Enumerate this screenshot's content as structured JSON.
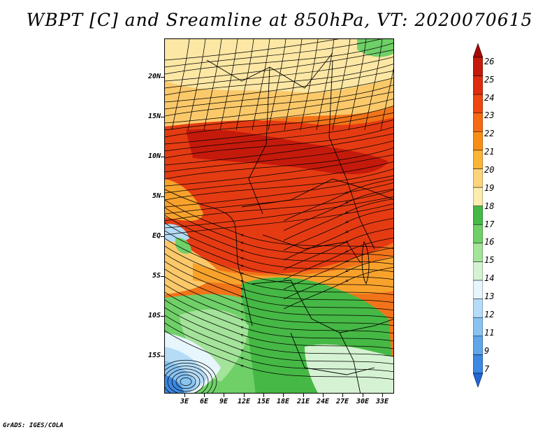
{
  "title": "WBPT [C] and Sreamline at 850hPa, VT: 2020070615",
  "latitude_labels": [
    "20N",
    "15N",
    "10N",
    "5N",
    "EQ",
    "5S",
    "10S",
    "15S"
  ],
  "longitude_labels": [
    "3E",
    "6E",
    "9E",
    "12E",
    "15E",
    "18E",
    "21E",
    "24E",
    "27E",
    "30E",
    "33E"
  ],
  "colorbar": {
    "labels": [
      "26",
      "25",
      "24",
      "23",
      "22",
      "21",
      "20",
      "19",
      "18",
      "17",
      "16",
      "15",
      "14",
      "13",
      "12",
      "11",
      "9",
      "7"
    ],
    "colors": [
      "#a50a0a",
      "#c41a0c",
      "#dd2c0f",
      "#ee4711",
      "#f56a12",
      "#f98e16",
      "#fbb338",
      "#fcd57a",
      "#fcecad",
      "#46b845",
      "#6fd068",
      "#a4e39a",
      "#d5f3d2",
      "#e7f5fd",
      "#b4dcf7",
      "#88c3f1",
      "#5fa6ea",
      "#3c88e2",
      "#1f66d6"
    ]
  },
  "map_colors": {
    "hot_core": "#c41a0c",
    "hot": "#e53b12",
    "warm": "#f2741a",
    "orange": "#f8a22c",
    "light_orange": "#fbc96a",
    "pale": "#fce7a4",
    "green_dark": "#46b845",
    "green": "#6fd068",
    "green_light": "#a4e39a",
    "green_pale": "#d5f3d2",
    "blue_pale": "#e7f5fd",
    "blue_light": "#b4dcf7",
    "blue": "#88c3f1",
    "blue_mid": "#5fa6ea",
    "blue_dark": "#3c88e2"
  },
  "credit": "GrADS: IGES/COLA"
}
